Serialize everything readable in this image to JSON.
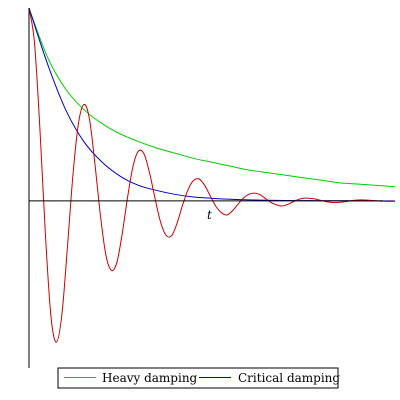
{
  "chart_data": {
    "type": "line",
    "title": "",
    "xlabel": "t",
    "ylabel": "",
    "xlim": [
      0,
      10
    ],
    "ylim": [
      -1.3,
      1.5
    ],
    "grid": false,
    "legend_position": "bottom-right",
    "series": [
      {
        "name": "Heavy damping",
        "color": "#00cc00",
        "x": [
          0,
          0.5,
          1,
          1.5,
          2,
          2.5,
          3,
          3.5,
          4,
          4.5,
          5,
          5.5,
          6,
          6.5,
          7,
          7.5,
          8,
          8.5,
          9,
          9.5,
          10
        ],
        "y": [
          1.5,
          1.12,
          0.87,
          0.71,
          0.6,
          0.52,
          0.46,
          0.41,
          0.37,
          0.33,
          0.3,
          0.27,
          0.24,
          0.22,
          0.2,
          0.18,
          0.16,
          0.14,
          0.13,
          0.12,
          0.11
        ]
      },
      {
        "name": "Critical damping",
        "color": "#0000cc",
        "x": [
          0,
          0.5,
          1,
          1.5,
          2,
          2.5,
          3,
          3.5,
          4,
          4.5,
          5,
          5.5,
          6,
          6.5,
          7,
          7.5,
          8,
          8.5,
          9,
          9.5,
          10
        ],
        "y": [
          1.5,
          1.07,
          0.71,
          0.46,
          0.3,
          0.19,
          0.12,
          0.08,
          0.05,
          0.03,
          0.02,
          0.012,
          0.008,
          0.005,
          0.003,
          0.002,
          0.001,
          0.0007,
          0.0004,
          0.0003,
          0.0002
        ]
      },
      {
        "name": "",
        "color": "#cc0000",
        "x": [
          0,
          0.15,
          0.3,
          0.45,
          0.6,
          0.75,
          0.9,
          1.05,
          1.2,
          1.35,
          1.5,
          1.65,
          1.8,
          1.95,
          2.1,
          2.25,
          2.4,
          2.55,
          2.7,
          2.85,
          3.0,
          3.15,
          3.3,
          3.45,
          3.6,
          3.75,
          3.9,
          4.05,
          4.2,
          4.35,
          4.5,
          4.65,
          4.8,
          4.95,
          5.1,
          5.25,
          5.4,
          5.55,
          5.7,
          5.85,
          6.0,
          6.15,
          6.3,
          6.45,
          6.6,
          6.75,
          6.9,
          7.05,
          7.2,
          7.35,
          7.5,
          7.65,
          7.8,
          7.95,
          8.1,
          8.25,
          8.4,
          8.55,
          8.7,
          8.85,
          9.0,
          9.15,
          9.3,
          9.45,
          9.6,
          9.75,
          9.9,
          10.0
        ],
        "y": [
          1.5,
          1.23,
          0.55,
          -0.27,
          -0.9,
          -1.1,
          -0.88,
          -0.36,
          0.2,
          0.6,
          0.75,
          0.64,
          0.29,
          -0.11,
          -0.42,
          -0.54,
          -0.48,
          -0.25,
          0.04,
          0.28,
          0.39,
          0.36,
          0.21,
          0.01,
          -0.17,
          -0.27,
          -0.27,
          -0.17,
          -0.03,
          0.09,
          0.16,
          0.17,
          0.12,
          0.04,
          -0.04,
          -0.09,
          -0.11,
          -0.08,
          -0.03,
          0.02,
          0.05,
          0.06,
          0.05,
          0.02,
          -0.01,
          -0.03,
          -0.04,
          -0.03,
          -0.01,
          0.01,
          0.02,
          0.02,
          0.015,
          0.005,
          -0.005,
          -0.012,
          -0.013,
          -0.01,
          -0.004,
          0.003,
          0.007,
          0.007,
          0.005,
          0.001,
          -0.002,
          -0.004,
          -0.004,
          -0.003
        ]
      }
    ]
  }
}
